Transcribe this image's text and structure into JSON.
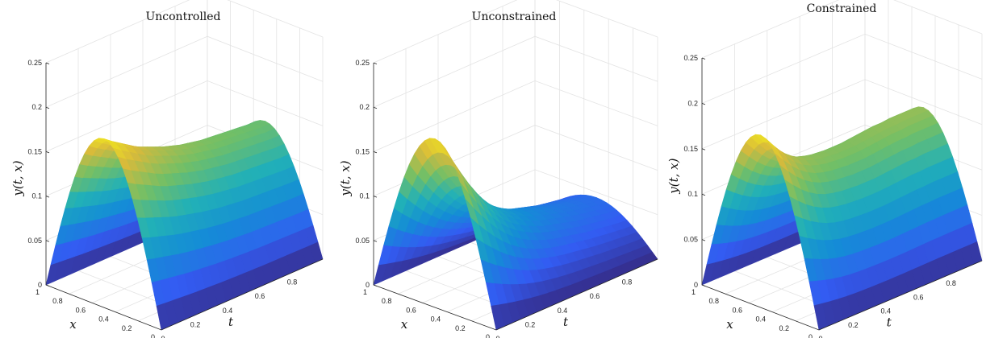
{
  "chart_data": [
    {
      "type": "surface",
      "title": "Uncontrolled",
      "xlabel": "t",
      "ylabel": "x",
      "zlabel": "y(t, x)",
      "xlim": [
        0,
        1
      ],
      "ylim": [
        0,
        1
      ],
      "zlim": [
        0,
        0.25
      ],
      "x_ticks": [
        "0",
        "0.2",
        "0.4",
        "0.6",
        "0.8"
      ],
      "y_ticks": [
        "0",
        "0.2",
        "0.4",
        "0.6",
        "0.8",
        "1"
      ],
      "z_ticks": [
        "0",
        "0.05",
        "0.1",
        "0.15",
        "0.2",
        "0.25"
      ],
      "grid": true,
      "colormap": "parula",
      "t": [
        0,
        0.05,
        0.1,
        0.15,
        0.2,
        0.25,
        0.3,
        0.35,
        0.4,
        0.45,
        0.5,
        0.55,
        0.6,
        0.65,
        0.7,
        0.75,
        0.8,
        0.85,
        0.9,
        0.95,
        1
      ],
      "amplitude_at_x_0_5": [
        0.19,
        0.183,
        0.177,
        0.171,
        0.165,
        0.16,
        0.156,
        0.152,
        0.148,
        0.145,
        0.142,
        0.14,
        0.138,
        0.136,
        0.135,
        0.134,
        0.133,
        0.132,
        0.131,
        0.13,
        0.13
      ]
    },
    {
      "type": "surface",
      "title": "Unconstrained",
      "xlabel": "t",
      "ylabel": "x",
      "zlabel": "y(t, x)",
      "xlim": [
        0,
        1
      ],
      "ylim": [
        0,
        1
      ],
      "zlim": [
        0,
        0.25
      ],
      "x_ticks": [
        "0",
        "0.2",
        "0.4",
        "0.6",
        "0.8"
      ],
      "y_ticks": [
        "0",
        "0.2",
        "0.4",
        "0.6",
        "0.8",
        "1"
      ],
      "z_ticks": [
        "0",
        "0.05",
        "0.1",
        "0.15",
        "0.2",
        "0.25"
      ],
      "grid": true,
      "colormap": "parula",
      "t": [
        0,
        0.05,
        0.1,
        0.15,
        0.2,
        0.25,
        0.3,
        0.35,
        0.4,
        0.45,
        0.5,
        0.55,
        0.6,
        0.65,
        0.7,
        0.75,
        0.8,
        0.85,
        0.9,
        0.95,
        1
      ],
      "amplitude_at_x_0_5": [
        0.19,
        0.17,
        0.152,
        0.135,
        0.12,
        0.107,
        0.096,
        0.087,
        0.08,
        0.074,
        0.069,
        0.065,
        0.062,
        0.059,
        0.056,
        0.053,
        0.051,
        0.049,
        0.047,
        0.045,
        0.044
      ]
    },
    {
      "type": "surface",
      "title": "Constrained",
      "xlabel": "t",
      "ylabel": "x",
      "zlabel": "y(t, x)",
      "xlim": [
        0,
        1
      ],
      "ylim": [
        0,
        1
      ],
      "zlim": [
        0,
        0.25
      ],
      "x_ticks": [
        "0",
        "0.2",
        "0.4",
        "0.6",
        "0.8"
      ],
      "y_ticks": [
        "0",
        "0.2",
        "0.4",
        "0.6",
        "0.8",
        "1"
      ],
      "z_ticks": [
        "0",
        "0.05",
        "0.1",
        "0.15",
        "0.2",
        "0.25"
      ],
      "grid": true,
      "colormap": "parula",
      "t": [
        0,
        0.05,
        0.1,
        0.15,
        0.2,
        0.25,
        0.3,
        0.35,
        0.4,
        0.45,
        0.5,
        0.55,
        0.6,
        0.65,
        0.7,
        0.75,
        0.8,
        0.85,
        0.9,
        0.95,
        1
      ],
      "amplitude_at_x_0_5": [
        0.19,
        0.178,
        0.167,
        0.158,
        0.151,
        0.146,
        0.143,
        0.141,
        0.14,
        0.139,
        0.139,
        0.139,
        0.14,
        0.141,
        0.142,
        0.143,
        0.143,
        0.144,
        0.144,
        0.144,
        0.144
      ]
    }
  ]
}
